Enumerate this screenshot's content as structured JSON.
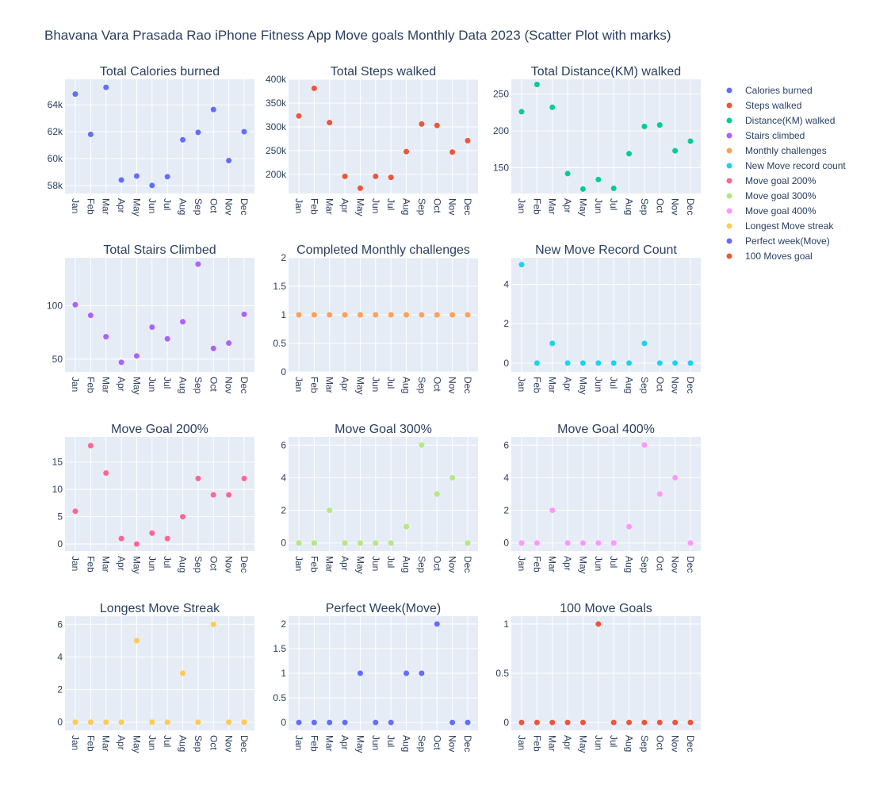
{
  "chart_data": {
    "type": "scatter",
    "title": "Bhavana Vara Prasada Rao iPhone Fitness App Move goals Monthly Data 2023 (Scatter Plot with marks)",
    "categories": [
      "Jan",
      "Feb",
      "Mar",
      "Apr",
      "May",
      "Jun",
      "Jul",
      "Aug",
      "Sep",
      "Oct",
      "Nov",
      "Dec"
    ],
    "legend_position": "right",
    "grid": true,
    "subplots": [
      {
        "title": "Total Calories burned",
        "series_name": "Calories burned",
        "color": "#636efa",
        "values": [
          64800,
          61800,
          65300,
          58400,
          58700,
          58000,
          58650,
          61400,
          61950,
          63650,
          59850,
          62000
        ],
        "ylim": [
          57400,
          65900
        ],
        "yticks": [
          58000,
          60000,
          62000,
          64000
        ],
        "ytick_labels": [
          "58k",
          "60k",
          "62k",
          "64k"
        ]
      },
      {
        "title": "Total Steps walked",
        "series_name": "Steps walked",
        "color": "#EF553B",
        "values": [
          323000,
          381000,
          309000,
          196000,
          171000,
          196000,
          194000,
          248000,
          306000,
          303000,
          247000,
          271000
        ],
        "ylim": [
          160000,
          400000
        ],
        "yticks": [
          200000,
          250000,
          300000,
          350000,
          400000
        ],
        "ytick_labels": [
          "200k",
          "250k",
          "300k",
          "350k",
          "400k"
        ]
      },
      {
        "title": "Total Distance(KM) walked",
        "series_name": "Distance(KM) walked",
        "color": "#00cc96",
        "values": [
          226,
          263,
          232,
          142,
          121,
          134,
          122,
          169,
          206,
          208,
          173,
          186
        ],
        "ylim": [
          115,
          270
        ],
        "yticks": [
          150,
          200,
          250
        ],
        "ytick_labels": [
          "150",
          "200",
          "250"
        ]
      },
      {
        "title": "Total Stairs Climbed",
        "series_name": "Stairs climbed",
        "color": "#ab63fa",
        "values": [
          101,
          91,
          71,
          47,
          53,
          80,
          69,
          85,
          139,
          60,
          65,
          92
        ],
        "ylim": [
          38,
          145
        ],
        "yticks": [
          50,
          100
        ],
        "ytick_labels": [
          "50",
          "100"
        ]
      },
      {
        "title": "Completed Monthly challenges",
        "series_name": "Monthly challenges",
        "color": "#FFA15A",
        "values": [
          1,
          1,
          1,
          1,
          1,
          1,
          1,
          1,
          1,
          1,
          1,
          1
        ],
        "ylim": [
          0,
          2
        ],
        "yticks": [
          0,
          0.5,
          1,
          1.5,
          2
        ],
        "ytick_labels": [
          "0",
          "0.5",
          "1",
          "1.5",
          "2"
        ]
      },
      {
        "title": "New Move Record Count",
        "series_name": "New Move record count",
        "color": "#19d3f3",
        "values": [
          5,
          0,
          1,
          0,
          0,
          0,
          0,
          0,
          1,
          0,
          0,
          0
        ],
        "ylim": [
          -0.45,
          5.35
        ],
        "yticks": [
          0,
          2,
          4
        ],
        "ytick_labels": [
          "0",
          "2",
          "4"
        ]
      },
      {
        "title": "Move Goal 200%",
        "series_name": "Move goal 200%",
        "color": "#FF6692",
        "values": [
          6,
          18,
          13,
          1,
          0,
          2,
          1,
          5,
          12,
          9,
          9,
          12
        ],
        "ylim": [
          -1.3,
          19.6
        ],
        "yticks": [
          0,
          5,
          10,
          15
        ],
        "ytick_labels": [
          "0",
          "5",
          "10",
          "15"
        ]
      },
      {
        "title": "Move Goal 300%",
        "series_name": "Move goal 300%",
        "color": "#B6E880",
        "values": [
          0,
          0,
          2,
          0,
          0,
          0,
          0,
          1,
          6,
          3,
          4,
          0
        ],
        "ylim": [
          -0.5,
          6.5
        ],
        "yticks": [
          0,
          2,
          4,
          6
        ],
        "ytick_labels": [
          "0",
          "2",
          "4",
          "6"
        ]
      },
      {
        "title": "Move Goal 400%",
        "series_name": "Move goal 400%",
        "color": "#FF97FF",
        "values": [
          0,
          0,
          2,
          0,
          0,
          0,
          0,
          1,
          6,
          3,
          4,
          0
        ],
        "ylim": [
          -0.5,
          6.5
        ],
        "yticks": [
          0,
          2,
          4,
          6
        ],
        "ytick_labels": [
          "0",
          "2",
          "4",
          "6"
        ]
      },
      {
        "title": "Longest Move Streak",
        "series_name": "Longest Move streak",
        "color": "#FECB52",
        "values": [
          0,
          0,
          0,
          0,
          5,
          0,
          0,
          3,
          0,
          6,
          0,
          0
        ],
        "ylim": [
          -0.5,
          6.5
        ],
        "yticks": [
          0,
          2,
          4,
          6
        ],
        "ytick_labels": [
          "0",
          "2",
          "4",
          "6"
        ]
      },
      {
        "title": "Perfect Week(Move)",
        "series_name": "Perfect week(Move)",
        "color": "#636efa",
        "values": [
          0,
          0,
          0,
          0,
          1,
          0,
          0,
          1,
          1,
          2,
          0,
          0
        ],
        "ylim": [
          -0.16,
          2.16
        ],
        "yticks": [
          0,
          0.5,
          1,
          1.5,
          2
        ],
        "ytick_labels": [
          "0",
          "0.5",
          "1",
          "1.5",
          "2"
        ]
      },
      {
        "title": "100 Move Goals",
        "series_name": "100 Moves goal",
        "color": "#EF553B",
        "values": [
          0,
          0,
          0,
          0,
          0,
          1,
          0,
          0,
          0,
          0,
          0,
          0
        ],
        "ylim": [
          -0.08,
          1.08
        ],
        "yticks": [
          0,
          0.5,
          1
        ],
        "ytick_labels": [
          "0",
          "0.5",
          "1"
        ]
      }
    ]
  }
}
